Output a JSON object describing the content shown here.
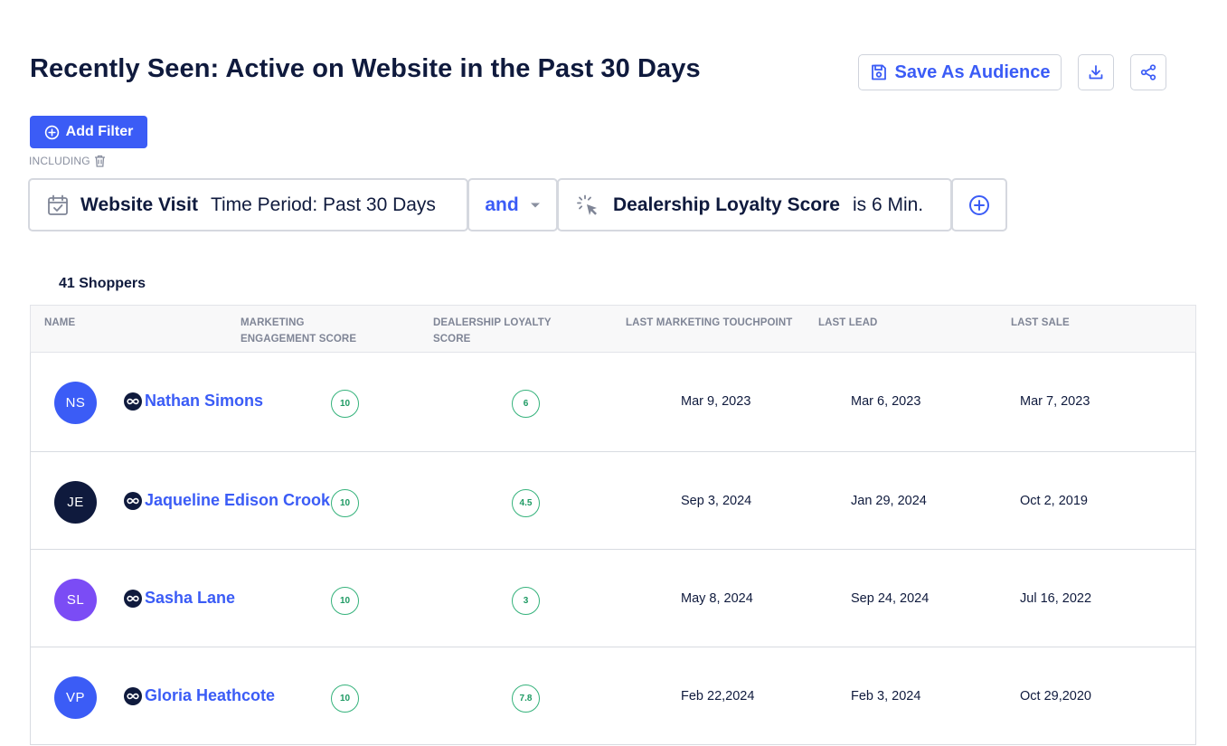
{
  "header": {
    "title": "Recently Seen: Active on Website in the Past 30 Days",
    "save_label": "Save As Audience",
    "accent": "#3b5cf6"
  },
  "filters": {
    "add_label": "Add Filter",
    "including_label": "INCLUDING",
    "chips": [
      {
        "icon": "calendar-check-icon",
        "main": "Website Visit",
        "detail": "Time Period: Past 30 Days"
      },
      {
        "icon": "cursor-click-icon",
        "main": "Dealership Loyalty Score",
        "detail": "is 6 Min."
      }
    ],
    "operator": "and"
  },
  "results": {
    "count_label": "41 Shoppers",
    "columns": [
      "NAME",
      "MARKETING ENGAGEMENT SCORE",
      "DEALERSHIP LOYALTY SCORE",
      "LAST MARKETING TOUCHPOINT",
      "LAST LEAD",
      "LAST SALE"
    ],
    "column_lines": [
      [
        "NAME"
      ],
      [
        "MARKETING",
        "ENGAGEMENT SCORE"
      ],
      [
        "DEALERSHIP LOYALTY",
        "SCORE"
      ],
      [
        "LAST MARKETING TOUCHPOINT"
      ],
      [
        "LAST LEAD"
      ],
      [
        "LAST SALE"
      ]
    ],
    "rows": [
      {
        "initials": "NS",
        "avatar_color": "#3b5cf6",
        "name": "Nathan Simons",
        "engagement": "10",
        "loyalty": "6",
        "last_touchpoint": "Mar 9, 2023",
        "last_lead": "Mar 6, 2023",
        "last_sale": "Mar 7, 2023"
      },
      {
        "initials": "JE",
        "avatar_color": "#0f1a3d",
        "name": "Jaqueline Edison Crook",
        "engagement": "10",
        "loyalty": "4.5",
        "last_touchpoint": "Sep 3, 2024",
        "last_lead": "Jan 29, 2024",
        "last_sale": "Oct 2, 2019"
      },
      {
        "initials": "SL",
        "avatar_color": "#7b4cf5",
        "name": "Sasha Lane",
        "engagement": "10",
        "loyalty": "3",
        "last_touchpoint": "May 8, 2024",
        "last_lead": "Sep 24, 2024",
        "last_sale": "Jul 16, 2022"
      },
      {
        "initials": "VP",
        "avatar_color": "#3b5cf6",
        "name": "Gloria Heathcote",
        "engagement": "10",
        "loyalty": "7.8",
        "last_touchpoint": "Feb 22,2024",
        "last_lead": "Feb 3, 2024",
        "last_sale": "Oct 29,2020"
      }
    ]
  }
}
